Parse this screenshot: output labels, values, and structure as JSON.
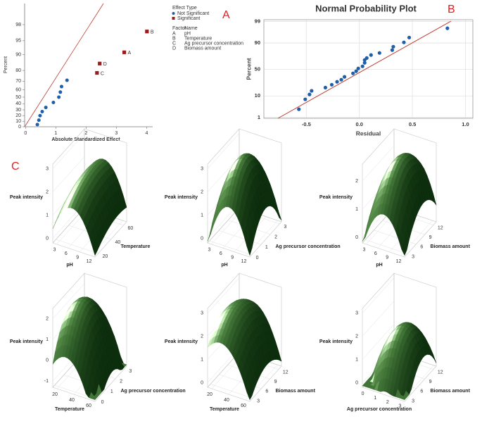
{
  "panel_labels": [
    "A",
    "B",
    "C"
  ],
  "chart_data": [
    {
      "type": "half-normal",
      "y_label": "Percent",
      "x_label": "Absolute Standardized Effect",
      "xlim": [
        -0.03,
        4.2
      ],
      "xticks": [
        0,
        1,
        2,
        3,
        4
      ],
      "ylim": [
        0,
        99.5
      ],
      "yticks": [
        0,
        10,
        20,
        30,
        40,
        50,
        60,
        70,
        80,
        90,
        95,
        98
      ],
      "yscale": "half-normal",
      "legend_title": "Effect Type",
      "series": [
        {
          "name": "Not Significant",
          "color": "#1f5fa8",
          "marker": "circle",
          "x": [
            0.39,
            0.44,
            0.48,
            0.55,
            0.67,
            0.92,
            1.1,
            1.15,
            1.19,
            1.37
          ],
          "values": [
            4,
            12,
            20,
            27,
            34,
            42,
            50,
            57,
            64,
            71
          ]
        },
        {
          "name": "Significant",
          "color": "#9b1c1c",
          "marker": "square",
          "x": [
            2.36,
            2.45,
            3.26,
            4.01
          ],
          "values": [
            78,
            85,
            91,
            97
          ],
          "labels": [
            "C",
            "D",
            "A",
            "B"
          ]
        }
      ],
      "factor_table": {
        "header": [
          "Factor",
          "Name"
        ],
        "rows": [
          [
            "A",
            "pH"
          ],
          [
            "B",
            "Temperature"
          ],
          [
            "C",
            "Ag precursor concentration"
          ],
          [
            "D",
            "Biomass amount"
          ]
        ]
      },
      "reference_line_color": "#c0392b"
    },
    {
      "type": "normal-probability",
      "title": "Normal Probability Plot",
      "x_label": "Residual",
      "y_label": "Percent",
      "xlim": [
        -0.9,
        1.07
      ],
      "xticks": [
        -0.5,
        {
          "value": 0,
          "label": "0.0"
        },
        0.5,
        {
          "value": 1,
          "label": "1.0"
        }
      ],
      "ylim": [
        0.9,
        99.2
      ],
      "yticks": [
        1,
        10,
        50,
        90,
        99
      ],
      "yscale": "normal",
      "grid": true,
      "color": "#1f5fa8",
      "reference_line_color": "#c0392b",
      "x": [
        -0.57,
        -0.51,
        -0.47,
        -0.45,
        -0.32,
        -0.26,
        -0.21,
        -0.17,
        -0.14,
        -0.06,
        -0.03,
        -0.01,
        0.03,
        0.05,
        0.05,
        0.07,
        0.11,
        0.19,
        0.31,
        0.32,
        0.42,
        0.47,
        0.83
      ],
      "values": [
        2.7,
        7.4,
        11.3,
        15,
        19,
        23,
        27.5,
        31,
        36,
        42.5,
        46.6,
        52,
        56,
        62.6,
        67.7,
        71,
        75.8,
        78.8,
        82.6,
        86.5,
        90.5,
        93.9,
        97.7
      ]
    },
    {
      "type": "surface",
      "z_label": "Peak intensity",
      "zlim": [
        -0.2,
        3.2
      ],
      "zticks": [
        0,
        1,
        2,
        3
      ],
      "x_label": "pH",
      "xlim": [
        2,
        13
      ],
      "xticks": [
        3,
        6,
        9,
        12
      ],
      "y_label": "Temperature",
      "ylim": [
        15,
        65
      ],
      "yticks": [
        20,
        40,
        60
      ],
      "color": "#2e6b2e"
    },
    {
      "type": "surface",
      "z_label": "Peak intensity",
      "zlim": [
        -0.2,
        3.2
      ],
      "zticks": [
        0,
        1,
        2,
        3
      ],
      "x_label": "pH",
      "xlim": [
        2,
        13
      ],
      "xticks": [
        3,
        6,
        9,
        12
      ],
      "y_label": "Ag precursor concentration",
      "ylim": [
        -0.2,
        3.2
      ],
      "yticks": [
        0,
        1,
        2,
        3
      ],
      "color": "#2e6b2e"
    },
    {
      "type": "surface",
      "z_label": "Peak intensity",
      "zlim": [
        -0.2,
        2.6
      ],
      "zticks": [
        0,
        1,
        2
      ],
      "x_label": "pH",
      "xlim": [
        2,
        13
      ],
      "xticks": [
        3,
        6,
        9,
        12
      ],
      "y_label": "Biomass amount",
      "ylim": [
        2,
        13
      ],
      "yticks": [
        3,
        6,
        9,
        12
      ],
      "color": "#2e6b2e"
    },
    {
      "type": "surface",
      "z_label": "Peak intensity",
      "zlim": [
        -1.3,
        2.5
      ],
      "zticks": [
        -1,
        0,
        1,
        2
      ],
      "x_label": "Temperature",
      "xlim": [
        15,
        65
      ],
      "xticks": [
        20,
        40,
        60
      ],
      "y_label": "Ag precursor concentration",
      "ylim": [
        -0.2,
        3.2
      ],
      "yticks": [
        0,
        1,
        2,
        3
      ],
      "color": "#2e6b2e"
    },
    {
      "type": "surface",
      "z_label": "Peak intensity",
      "zlim": [
        -0.2,
        3.2
      ],
      "zticks": [
        0,
        1,
        2,
        3
      ],
      "x_label": "Temperature",
      "xlim": [
        15,
        65
      ],
      "xticks": [
        20,
        40,
        60
      ],
      "y_label": "Biomass amount",
      "ylim": [
        2,
        13
      ],
      "yticks": [
        3,
        6,
        9,
        12
      ],
      "color": "#2e6b2e"
    },
    {
      "type": "surface",
      "z_label": "Peak intensity",
      "zlim": [
        -0.2,
        3.2
      ],
      "zticks": [
        0,
        1,
        2,
        3
      ],
      "x_label": "Ag precursor concentration",
      "xlim": [
        -0.2,
        3.2
      ],
      "xticks": [
        0,
        1,
        2,
        3
      ],
      "y_label": "Biomass amount",
      "ylim": [
        2,
        13
      ],
      "yticks": [
        3,
        6,
        9,
        12
      ],
      "color": "#2e6b2e"
    }
  ]
}
